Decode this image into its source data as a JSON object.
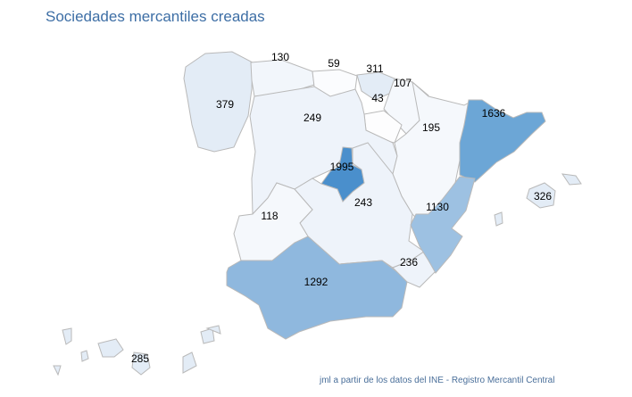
{
  "title": "Sociedades mercantiles creadas",
  "footer": "jml a partir de los datos del INE - Registro Mercantil Central",
  "regions": [
    {
      "id": "galicia",
      "value": "379",
      "color": "#e3ecf6"
    },
    {
      "id": "asturias",
      "value": "130",
      "color": "#f2f6fb"
    },
    {
      "id": "cantabria",
      "value": "59",
      "color": "#fbfcfe"
    },
    {
      "id": "pais-vasco",
      "value": "311",
      "color": "#e3ecf6"
    },
    {
      "id": "navarra",
      "value": "107",
      "color": "#f5f8fc"
    },
    {
      "id": "la-rioja",
      "value": "43",
      "color": "#fdfdfe"
    },
    {
      "id": "castilla-leon",
      "value": "249",
      "color": "#eef3fa"
    },
    {
      "id": "aragon",
      "value": "195",
      "color": "#f5f8fc"
    },
    {
      "id": "cataluna",
      "value": "1636",
      "color": "#6ca6d6"
    },
    {
      "id": "madrid",
      "value": "1995",
      "color": "#4a8fcc"
    },
    {
      "id": "castilla-la-mancha",
      "value": "243",
      "color": "#eef3fa"
    },
    {
      "id": "extremadura",
      "value": "118",
      "color": "#f5f8fc"
    },
    {
      "id": "andalucia",
      "value": "1292",
      "color": "#8fb8de"
    },
    {
      "id": "murcia",
      "value": "236",
      "color": "#eef3fa"
    },
    {
      "id": "valencia",
      "value": "1130",
      "color": "#9dc1e2"
    },
    {
      "id": "baleares",
      "value": "326",
      "color": "#e3ecf6"
    },
    {
      "id": "canarias",
      "value": "285",
      "color": "#e3ecf6"
    }
  ]
}
